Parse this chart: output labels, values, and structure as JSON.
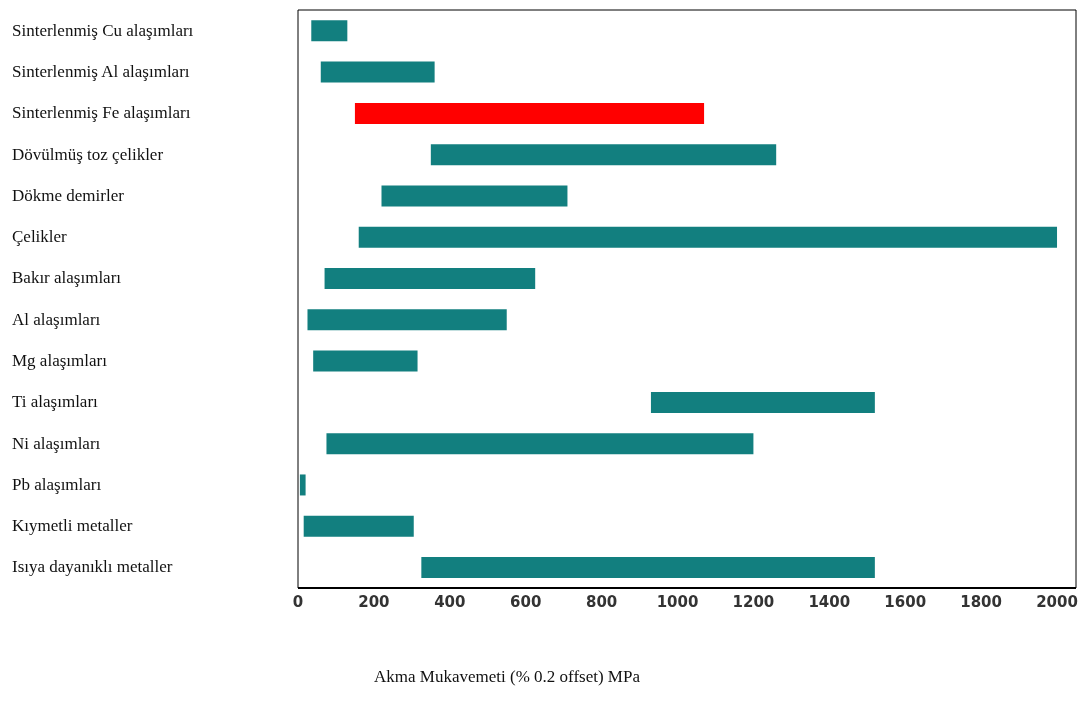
{
  "chart_data": {
    "type": "bar",
    "orientation": "horizontal",
    "xlabel": "Akma Mukavemeti (% 0.2 offset) MPa",
    "categories": [
      "Sinterlenmiş Cu alaşımları",
      "Sinterlenmiş Al alaşımları",
      "Sinterlenmiş Fe alaşımları",
      "Dövülmüş toz çelikler",
      "Dökme demirler",
      "Çelikler",
      "Bakır alaşımları",
      "Al alaşımları",
      "Mg alaşımları",
      "Ti alaşımları",
      "Ni alaşımları",
      "Pb alaşımları",
      "Kıymetli metaller",
      "Isıya dayanıklı metaller"
    ],
    "base": [
      35,
      60,
      150,
      350,
      220,
      160,
      70,
      25,
      40,
      930,
      75,
      5,
      15,
      325
    ],
    "values": [
      95,
      300,
      920,
      910,
      490,
      1840,
      555,
      525,
      275,
      590,
      1125,
      15,
      290,
      1195
    ],
    "colors": [
      "#127f7f",
      "#127f7f",
      "#ff0000",
      "#127f7f",
      "#127f7f",
      "#127f7f",
      "#127f7f",
      "#127f7f",
      "#127f7f",
      "#127f7f",
      "#127f7f",
      "#127f7f",
      "#127f7f",
      "#127f7f"
    ],
    "xlim": [
      0,
      2050
    ],
    "xticks": [
      0,
      200,
      400,
      600,
      800,
      1000,
      1200,
      1400,
      1600,
      1800,
      2000
    ],
    "grid": false,
    "legend": false
  }
}
